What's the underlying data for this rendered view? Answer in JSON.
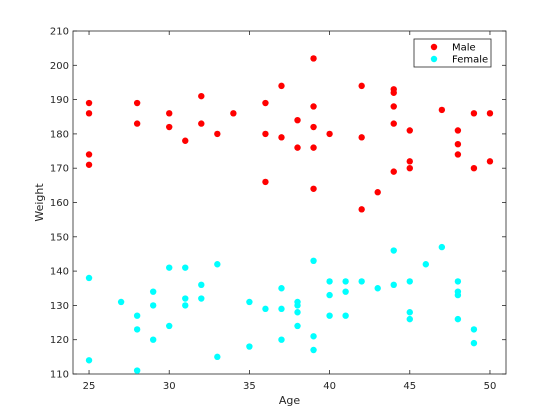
{
  "chart_data": {
    "type": "scatter",
    "title": "",
    "xlabel": "Age",
    "ylabel": "Weight",
    "xlim": [
      24,
      51
    ],
    "ylim": [
      110,
      210
    ],
    "xticks": [
      25,
      30,
      35,
      40,
      45,
      50
    ],
    "yticks": [
      110,
      120,
      130,
      140,
      150,
      160,
      170,
      180,
      190,
      200,
      210
    ],
    "grid": false,
    "legend_position": "top-right",
    "series": [
      {
        "name": "Male",
        "color": "#ff0000",
        "marker": "circle",
        "points": [
          [
            25,
            189
          ],
          [
            25,
            186
          ],
          [
            25,
            174
          ],
          [
            25,
            171
          ],
          [
            28,
            189
          ],
          [
            28,
            183
          ],
          [
            30,
            186
          ],
          [
            30,
            182
          ],
          [
            31,
            178
          ],
          [
            32,
            191
          ],
          [
            32,
            183
          ],
          [
            33,
            180
          ],
          [
            34,
            186
          ],
          [
            36,
            189
          ],
          [
            36,
            180
          ],
          [
            36,
            166
          ],
          [
            37,
            194
          ],
          [
            37,
            179
          ],
          [
            38,
            184
          ],
          [
            38,
            176
          ],
          [
            39,
            202
          ],
          [
            39,
            188
          ],
          [
            39,
            182
          ],
          [
            39,
            176
          ],
          [
            39,
            164
          ],
          [
            40,
            180
          ],
          [
            42,
            194
          ],
          [
            42,
            179
          ],
          [
            42,
            158
          ],
          [
            43,
            163
          ],
          [
            44,
            193
          ],
          [
            44,
            192
          ],
          [
            44,
            188
          ],
          [
            44,
            183
          ],
          [
            44,
            169
          ],
          [
            45,
            181
          ],
          [
            45,
            172
          ],
          [
            45,
            170
          ],
          [
            47,
            187
          ],
          [
            48,
            181
          ],
          [
            48,
            177
          ],
          [
            48,
            174
          ],
          [
            49,
            186
          ],
          [
            49,
            170
          ],
          [
            50,
            186
          ],
          [
            50,
            172
          ]
        ]
      },
      {
        "name": "Female",
        "color": "#00ffff",
        "marker": "circle",
        "points": [
          [
            25,
            138
          ],
          [
            25,
            114
          ],
          [
            27,
            131
          ],
          [
            28,
            127
          ],
          [
            28,
            123
          ],
          [
            28,
            111
          ],
          [
            29,
            134
          ],
          [
            29,
            130
          ],
          [
            29,
            120
          ],
          [
            30,
            141
          ],
          [
            30,
            124
          ],
          [
            31,
            141
          ],
          [
            31,
            132
          ],
          [
            31,
            130
          ],
          [
            32,
            136
          ],
          [
            32,
            132
          ],
          [
            33,
            142
          ],
          [
            33,
            115
          ],
          [
            35,
            131
          ],
          [
            35,
            118
          ],
          [
            36,
            129
          ],
          [
            37,
            135
          ],
          [
            37,
            129
          ],
          [
            37,
            120
          ],
          [
            38,
            131
          ],
          [
            38,
            130
          ],
          [
            38,
            128
          ],
          [
            38,
            124
          ],
          [
            39,
            143
          ],
          [
            39,
            121
          ],
          [
            39,
            117
          ],
          [
            40,
            137
          ],
          [
            40,
            133
          ],
          [
            40,
            127
          ],
          [
            41,
            137
          ],
          [
            41,
            134
          ],
          [
            41,
            127
          ],
          [
            42,
            137
          ],
          [
            43,
            135
          ],
          [
            44,
            146
          ],
          [
            44,
            136
          ],
          [
            45,
            137
          ],
          [
            45,
            128
          ],
          [
            45,
            126
          ],
          [
            46,
            142
          ],
          [
            47,
            147
          ],
          [
            48,
            137
          ],
          [
            48,
            134
          ],
          [
            48,
            133
          ],
          [
            48,
            126
          ],
          [
            49,
            123
          ],
          [
            49,
            119
          ]
        ]
      }
    ]
  }
}
